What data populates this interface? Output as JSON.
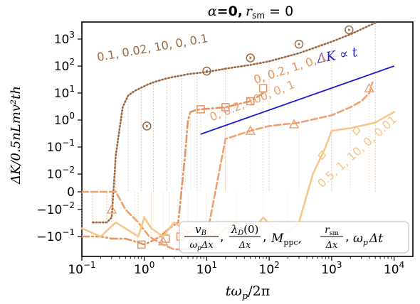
{
  "chart_data": {
    "type": "line",
    "title_parts": {
      "alpha": "α",
      "eq0": "=0,",
      "r": "r",
      "sm": "sm",
      "eq": " = 0"
    },
    "xlabel_parts": {
      "t": "tω",
      "p": "p",
      "rest": "/2π"
    },
    "ylabel": "ΔK/0.5nLmv²th",
    "x_scale": "log",
    "y_scale": "symlog",
    "xlim": [
      0.1,
      20000
    ],
    "ylim": [
      -0.3,
      5000
    ],
    "x_ticks": [
      {
        "v": 0.1,
        "m": "10",
        "e": "−1"
      },
      {
        "v": 1,
        "m": "10",
        "e": "0"
      },
      {
        "v": 10,
        "m": "10",
        "e": "1"
      },
      {
        "v": 100,
        "m": "10",
        "e": "2"
      },
      {
        "v": 1000,
        "m": "10",
        "e": "3"
      },
      {
        "v": 10000,
        "m": "10",
        "e": "4"
      }
    ],
    "y_ticks": [
      {
        "v": 1000,
        "m": "10",
        "e": "3"
      },
      {
        "v": 100,
        "m": "10",
        "e": "2"
      },
      {
        "v": 10,
        "m": "10",
        "e": "1"
      },
      {
        "v": 1,
        "m": "10",
        "e": "0"
      },
      {
        "v": 0.1,
        "m": "10",
        "e": "−1"
      },
      {
        "v": 0.01,
        "m": "10",
        "e": "−2"
      },
      {
        "v": 0,
        "m": "0",
        "e": ""
      },
      {
        "v": -0.01,
        "m": "−10",
        "e": "−2"
      },
      {
        "v": -0.1,
        "m": "−10",
        "e": "−1"
      }
    ],
    "series": [
      {
        "name": "0.1, 0.02, 10, 0, 0.1",
        "color": "#9b6a45",
        "style": "dotted",
        "marker": "circle",
        "label_pos": [
          0.18,
          150
        ],
        "x": [
          0.15,
          0.2,
          0.25,
          0.3,
          0.35,
          0.45,
          0.55,
          0.7,
          0.9,
          1.1,
          1.4,
          1.8,
          2.3,
          3,
          4,
          5,
          7,
          10,
          20,
          50,
          100,
          300,
          1000,
          2000,
          5000
        ],
        "y": [
          -0.03,
          -0.03,
          -0.03,
          -0.02,
          0.05,
          3,
          8,
          12,
          16,
          20,
          25,
          30,
          35,
          40,
          45,
          50,
          55,
          60,
          80,
          110,
          150,
          300,
          800,
          1500,
          4000
        ],
        "markers": [
          [
            1.1,
            0.6
          ],
          [
            10,
            65
          ],
          [
            50,
            200
          ],
          [
            300,
            650
          ],
          [
            1900,
            2200
          ]
        ]
      },
      {
        "name": "0, 0.2, 1, 0, 1",
        "color": "#e4945f",
        "style": "dashdot",
        "marker": "square",
        "label_pos": [
          60,
          22
        ],
        "x": [
          0.1,
          0.2,
          0.3,
          0.5,
          0.7,
          1,
          1.3,
          1.8,
          2.5,
          3.5,
          4.5,
          5,
          5.5,
          6.5,
          8,
          10,
          20,
          50,
          80
        ],
        "y": [
          -0.1,
          -0.1,
          -0.12,
          -0.12,
          -0.15,
          -0.2,
          -0.15,
          -0.1,
          -0.05,
          -0.03,
          0.05,
          1,
          2,
          2.3,
          2.5,
          2.6,
          3,
          5,
          10
        ],
        "markers": [
          [
            0.9,
            -0.2
          ],
          [
            2.2,
            -0.12
          ],
          [
            3.8,
            -0.1
          ],
          [
            8,
            2.5
          ],
          [
            20,
            3
          ],
          [
            50,
            5
          ],
          [
            80,
            15
          ]
        ]
      },
      {
        "name": "0, 0.2, 100, 0, 1",
        "color": "#eea06e",
        "style": "dashed",
        "marker": "triangle",
        "label_pos": [
          12,
          0.9
        ],
        "x": [
          0.1,
          0.2,
          0.35,
          0.5,
          0.8,
          1.2,
          2,
          3,
          5,
          7,
          10,
          20,
          50,
          100,
          300,
          1000,
          2000,
          3000,
          4000,
          4500
        ],
        "y": [
          0,
          0,
          0,
          -0.01,
          -0.03,
          -0.1,
          -0.2,
          -0.3,
          -0.3,
          -0.2,
          -0.1,
          0.2,
          0.4,
          0.6,
          0.8,
          1.5,
          3,
          5,
          10,
          25
        ],
        "markers": [
          [
            0.3,
            -0.01
          ],
          [
            2,
            -0.15
          ],
          [
            50,
            0.4
          ],
          [
            250,
            0.7
          ],
          [
            4000,
            15
          ]
        ]
      },
      {
        "name": "0.5, 1, 10, 0, 0.01",
        "color": "#f7c689",
        "style": "solid",
        "marker": "diamond",
        "label_pos": [
          700,
          0.002
        ],
        "x": [
          0.1,
          0.2,
          0.35,
          0.5,
          0.8,
          1,
          1.3,
          2,
          3,
          5,
          7,
          10,
          15,
          20,
          30,
          50,
          80,
          120,
          200,
          300,
          500,
          800,
          1000,
          2000,
          5000,
          10000
        ],
        "y": [
          -0.05,
          -0.1,
          -0.03,
          -0.05,
          -0.1,
          -0.02,
          -0.05,
          -0.1,
          -0.03,
          -0.07,
          -0.05,
          -0.05,
          -0.1,
          -0.05,
          -0.03,
          -0.07,
          -0.02,
          -0.05,
          -0.07,
          -0.03,
          0.01,
          0.1,
          0.4,
          0.5,
          0.8,
          2
        ],
        "markers": [
          [
            50,
            -0.07
          ],
          [
            700,
            0.05
          ],
          [
            2500,
            0.4
          ]
        ]
      }
    ],
    "reference": {
      "label": "ΔK ∝ t",
      "color": "#1a1ad0",
      "x": [
        8,
        10000
      ],
      "y": [
        0.3,
        100
      ]
    },
    "legend_box_parts": {
      "v": "v",
      "B": "B",
      "wp": "ω",
      "p": "p",
      "dx": "Δx",
      "lam": "λ",
      "D": "D",
      "zero": "(0)",
      "M": "M",
      "ppc": "ppc",
      "r": "r",
      "sm": "sm",
      "omega": "ω",
      "dt": "Δt",
      "comma": ","
    }
  }
}
